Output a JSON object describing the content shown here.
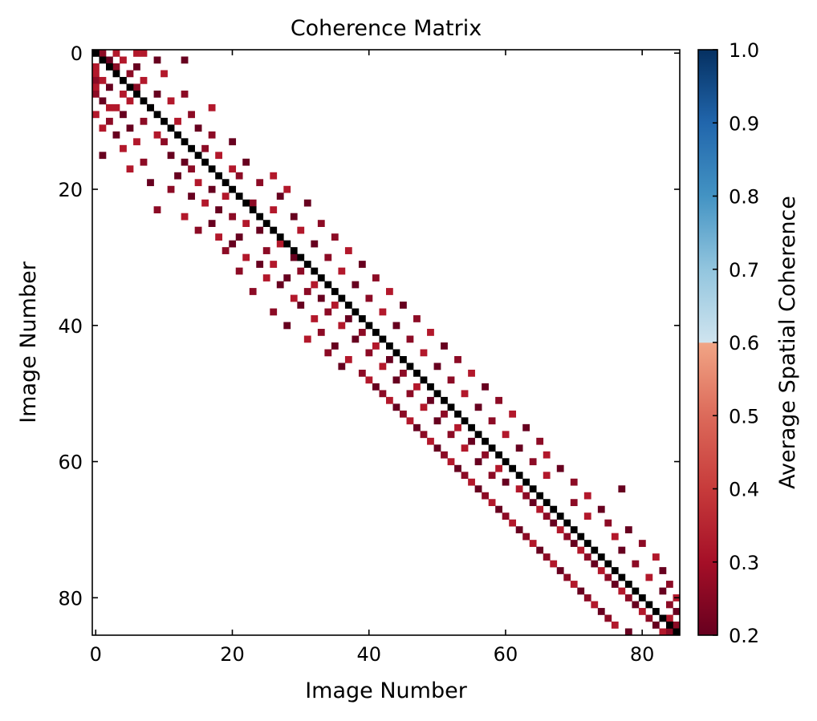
{
  "chart_data": {
    "type": "heatmap",
    "title": "Coherence Matrix",
    "xlabel": "Image Number",
    "ylabel": "Image Number",
    "colorbar_label": "Average Spatial Coherence",
    "n": 86,
    "xlim": [
      0,
      85
    ],
    "ylim": [
      85,
      0
    ],
    "x_ticks": [
      "0",
      "20",
      "40",
      "60",
      "80"
    ],
    "y_ticks": [
      "0",
      "20",
      "40",
      "60",
      "80"
    ],
    "colorbar_range": [
      0.2,
      1.0
    ],
    "colorbar_ticks": [
      "0.2",
      "0.3",
      "0.4",
      "0.5",
      "0.6",
      "0.7",
      "0.8",
      "0.9",
      "1.0"
    ],
    "colormap": "RdBu",
    "diagonal_color": "#000000",
    "cell_colors": [
      "#67001f",
      "#8c0b25",
      "#b2182b"
    ],
    "cells": [
      [
        0,
        1,
        1
      ],
      [
        0,
        3,
        2
      ],
      [
        0,
        6,
        2
      ],
      [
        0,
        7,
        2
      ],
      [
        1,
        2,
        0
      ],
      [
        1,
        4,
        2
      ],
      [
        1,
        9,
        0
      ],
      [
        1,
        13,
        0
      ],
      [
        2,
        0,
        2
      ],
      [
        2,
        3,
        1
      ],
      [
        2,
        6,
        0
      ],
      [
        3,
        0,
        2
      ],
      [
        3,
        5,
        1
      ],
      [
        3,
        10,
        2
      ],
      [
        4,
        0,
        1
      ],
      [
        4,
        1,
        2
      ],
      [
        4,
        7,
        2
      ],
      [
        5,
        0,
        2
      ],
      [
        5,
        2,
        0
      ],
      [
        5,
        6,
        1
      ],
      [
        6,
        0,
        1
      ],
      [
        6,
        4,
        2
      ],
      [
        6,
        9,
        0
      ],
      [
        6,
        13,
        1
      ],
      [
        7,
        1,
        0
      ],
      [
        7,
        5,
        2
      ],
      [
        7,
        11,
        2
      ],
      [
        8,
        2,
        2
      ],
      [
        8,
        3,
        2
      ],
      [
        8,
        8,
        0
      ],
      [
        8,
        17,
        2
      ],
      [
        9,
        0,
        2
      ],
      [
        9,
        4,
        0
      ],
      [
        9,
        14,
        1
      ],
      [
        10,
        2,
        1
      ],
      [
        10,
        7,
        1
      ],
      [
        10,
        12,
        2
      ],
      [
        11,
        1,
        2
      ],
      [
        11,
        5,
        0
      ],
      [
        11,
        15,
        0
      ],
      [
        12,
        3,
        0
      ],
      [
        12,
        9,
        2
      ],
      [
        12,
        17,
        1
      ],
      [
        13,
        6,
        2
      ],
      [
        13,
        10,
        1
      ],
      [
        13,
        20,
        0
      ],
      [
        14,
        4,
        2
      ],
      [
        14,
        16,
        1
      ],
      [
        15,
        1,
        0
      ],
      [
        15,
        11,
        0
      ],
      [
        15,
        18,
        2
      ],
      [
        16,
        7,
        1
      ],
      [
        16,
        13,
        0
      ],
      [
        16,
        22,
        0
      ],
      [
        17,
        5,
        2
      ],
      [
        17,
        14,
        1
      ],
      [
        17,
        20,
        2
      ],
      [
        18,
        12,
        0
      ],
      [
        18,
        21,
        1
      ],
      [
        18,
        26,
        2
      ],
      [
        19,
        8,
        0
      ],
      [
        19,
        15,
        2
      ],
      [
        19,
        24,
        1
      ],
      [
        20,
        11,
        1
      ],
      [
        20,
        17,
        0
      ],
      [
        20,
        28,
        2
      ],
      [
        21,
        14,
        0
      ],
      [
        21,
        19,
        2
      ],
      [
        21,
        27,
        0
      ],
      [
        22,
        16,
        2
      ],
      [
        22,
        23,
        1
      ],
      [
        22,
        31,
        0
      ],
      [
        23,
        9,
        1
      ],
      [
        23,
        18,
        0
      ],
      [
        23,
        26,
        2
      ],
      [
        24,
        13,
        2
      ],
      [
        24,
        20,
        1
      ],
      [
        24,
        29,
        0
      ],
      [
        25,
        17,
        0
      ],
      [
        25,
        22,
        2
      ],
      [
        25,
        33,
        1
      ],
      [
        26,
        15,
        1
      ],
      [
        26,
        24,
        0
      ],
      [
        26,
        30,
        2
      ],
      [
        27,
        18,
        2
      ],
      [
        27,
        21,
        0
      ],
      [
        27,
        35,
        1
      ],
      [
        28,
        20,
        0
      ],
      [
        28,
        27,
        2
      ],
      [
        28,
        32,
        0
      ],
      [
        29,
        19,
        1
      ],
      [
        29,
        25,
        1
      ],
      [
        29,
        37,
        2
      ],
      [
        30,
        22,
        2
      ],
      [
        30,
        29,
        0
      ],
      [
        30,
        34,
        1
      ],
      [
        31,
        24,
        0
      ],
      [
        31,
        26,
        2
      ],
      [
        31,
        39,
        0
      ],
      [
        32,
        21,
        1
      ],
      [
        32,
        30,
        1
      ],
      [
        32,
        36,
        2
      ],
      [
        33,
        25,
        2
      ],
      [
        33,
        28,
        0
      ],
      [
        33,
        41,
        1
      ],
      [
        34,
        27,
        0
      ],
      [
        34,
        32,
        2
      ],
      [
        34,
        38,
        0
      ],
      [
        35,
        23,
        1
      ],
      [
        35,
        31,
        1
      ],
      [
        35,
        43,
        2
      ],
      [
        36,
        29,
        2
      ],
      [
        36,
        33,
        0
      ],
      [
        36,
        40,
        1
      ],
      [
        37,
        30,
        0
      ],
      [
        37,
        35,
        2
      ],
      [
        37,
        45,
        0
      ],
      [
        38,
        26,
        1
      ],
      [
        38,
        34,
        1
      ],
      [
        38,
        42,
        2
      ],
      [
        39,
        32,
        2
      ],
      [
        39,
        37,
        0
      ],
      [
        39,
        47,
        1
      ],
      [
        40,
        28,
        0
      ],
      [
        40,
        36,
        2
      ],
      [
        40,
        44,
        0
      ],
      [
        41,
        33,
        1
      ],
      [
        41,
        39,
        1
      ],
      [
        41,
        49,
        2
      ],
      [
        42,
        31,
        2
      ],
      [
        42,
        38,
        0
      ],
      [
        42,
        46,
        1
      ],
      [
        43,
        35,
        0
      ],
      [
        43,
        41,
        2
      ],
      [
        43,
        51,
        0
      ],
      [
        44,
        34,
        1
      ],
      [
        44,
        40,
        1
      ],
      [
        44,
        48,
        2
      ],
      [
        45,
        37,
        2
      ],
      [
        45,
        43,
        0
      ],
      [
        45,
        53,
        1
      ],
      [
        46,
        36,
        0
      ],
      [
        46,
        42,
        2
      ],
      [
        46,
        50,
        0
      ],
      [
        47,
        39,
        1
      ],
      [
        47,
        45,
        1
      ],
      [
        47,
        55,
        2
      ],
      [
        48,
        40,
        2
      ],
      [
        48,
        44,
        0
      ],
      [
        48,
        52,
        1
      ],
      [
        49,
        41,
        0
      ],
      [
        49,
        47,
        2
      ],
      [
        49,
        57,
        0
      ],
      [
        50,
        42,
        1
      ],
      [
        50,
        46,
        1
      ],
      [
        50,
        54,
        2
      ],
      [
        51,
        43,
        2
      ],
      [
        51,
        49,
        0
      ],
      [
        51,
        59,
        1
      ],
      [
        52,
        44,
        0
      ],
      [
        52,
        48,
        2
      ],
      [
        52,
        56,
        0
      ],
      [
        53,
        45,
        1
      ],
      [
        53,
        51,
        1
      ],
      [
        53,
        61,
        2
      ],
      [
        54,
        46,
        2
      ],
      [
        54,
        50,
        0
      ],
      [
        54,
        58,
        1
      ],
      [
        55,
        47,
        0
      ],
      [
        55,
        53,
        2
      ],
      [
        55,
        63,
        0
      ],
      [
        56,
        48,
        1
      ],
      [
        56,
        52,
        1
      ],
      [
        56,
        60,
        2
      ],
      [
        57,
        49,
        2
      ],
      [
        57,
        55,
        0
      ],
      [
        57,
        65,
        1
      ],
      [
        58,
        50,
        0
      ],
      [
        58,
        54,
        2
      ],
      [
        58,
        62,
        0
      ],
      [
        59,
        51,
        1
      ],
      [
        59,
        57,
        1
      ],
      [
        59,
        66,
        2
      ],
      [
        60,
        52,
        2
      ],
      [
        60,
        56,
        0
      ],
      [
        60,
        64,
        1
      ],
      [
        61,
        53,
        0
      ],
      [
        61,
        59,
        2
      ],
      [
        61,
        68,
        0
      ],
      [
        62,
        54,
        1
      ],
      [
        62,
        58,
        1
      ],
      [
        62,
        66,
        2
      ],
      [
        63,
        55,
        2
      ],
      [
        63,
        60,
        0
      ],
      [
        63,
        70,
        1
      ],
      [
        64,
        56,
        0
      ],
      [
        64,
        62,
        2
      ],
      [
        64,
        77,
        0
      ],
      [
        65,
        57,
        1
      ],
      [
        65,
        63,
        1
      ],
      [
        65,
        72,
        2
      ],
      [
        66,
        58,
        2
      ],
      [
        66,
        64,
        0
      ],
      [
        66,
        70,
        1
      ],
      [
        67,
        59,
        0
      ],
      [
        67,
        65,
        2
      ],
      [
        67,
        74,
        0
      ],
      [
        68,
        60,
        1
      ],
      [
        68,
        66,
        1
      ],
      [
        68,
        72,
        2
      ],
      [
        69,
        61,
        2
      ],
      [
        69,
        67,
        0
      ],
      [
        69,
        75,
        1
      ],
      [
        70,
        62,
        0
      ],
      [
        70,
        68,
        2
      ],
      [
        70,
        78,
        0
      ],
      [
        71,
        63,
        1
      ],
      [
        71,
        69,
        1
      ],
      [
        71,
        76,
        2
      ],
      [
        72,
        64,
        2
      ],
      [
        72,
        70,
        0
      ],
      [
        72,
        80,
        1
      ],
      [
        73,
        65,
        0
      ],
      [
        73,
        71,
        2
      ],
      [
        73,
        77,
        0
      ],
      [
        74,
        66,
        1
      ],
      [
        74,
        72,
        1
      ],
      [
        74,
        82,
        2
      ],
      [
        75,
        67,
        2
      ],
      [
        75,
        73,
        0
      ],
      [
        75,
        79,
        1
      ],
      [
        76,
        68,
        0
      ],
      [
        76,
        74,
        2
      ],
      [
        76,
        83,
        0
      ],
      [
        77,
        69,
        1
      ],
      [
        77,
        75,
        1
      ],
      [
        77,
        81,
        2
      ],
      [
        78,
        70,
        2
      ],
      [
        78,
        76,
        0
      ],
      [
        78,
        84,
        1
      ],
      [
        79,
        71,
        0
      ],
      [
        79,
        77,
        2
      ],
      [
        79,
        83,
        0
      ],
      [
        80,
        72,
        1
      ],
      [
        80,
        78,
        1
      ],
      [
        80,
        85,
        2
      ],
      [
        81,
        73,
        2
      ],
      [
        81,
        79,
        0
      ],
      [
        81,
        84,
        1
      ],
      [
        82,
        74,
        0
      ],
      [
        82,
        80,
        2
      ],
      [
        82,
        85,
        0
      ],
      [
        83,
        75,
        1
      ],
      [
        83,
        81,
        1
      ],
      [
        83,
        84,
        2
      ],
      [
        84,
        76,
        2
      ],
      [
        84,
        82,
        0
      ],
      [
        84,
        85,
        1
      ],
      [
        85,
        78,
        0
      ],
      [
        85,
        83,
        2
      ],
      [
        85,
        84,
        1
      ]
    ]
  }
}
